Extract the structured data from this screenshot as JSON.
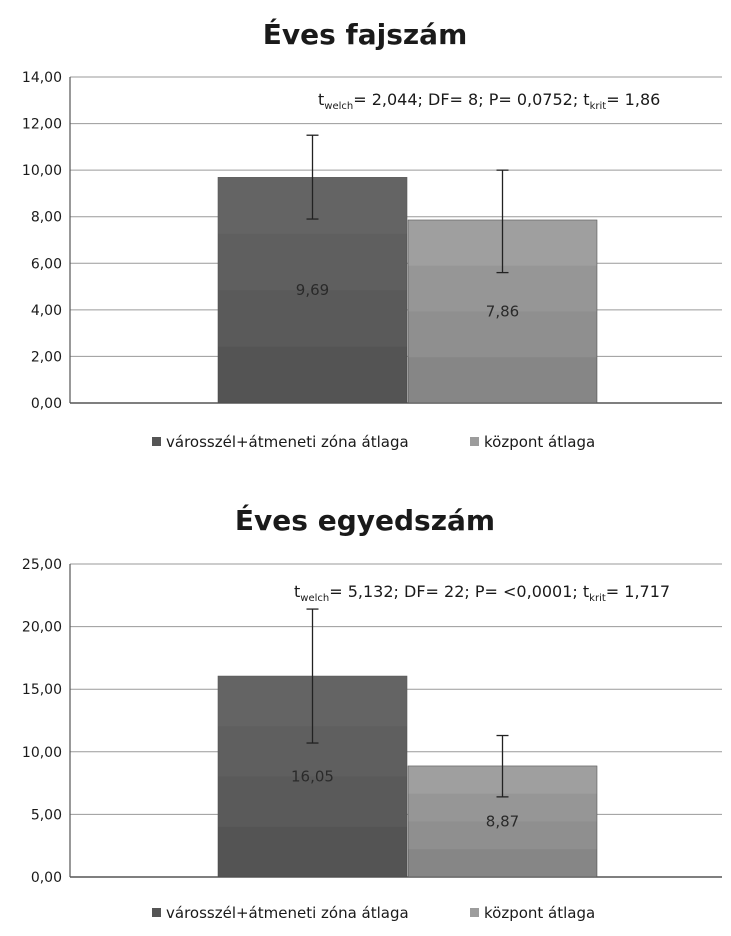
{
  "chart_data": [
    {
      "type": "bar",
      "title": "Éves fajszám",
      "categories": [
        "városszél+átmeneti zóna átlaga",
        "központ átlaga"
      ],
      "values": [
        9.69,
        7.86
      ],
      "value_labels": [
        "9,69",
        "7,86"
      ],
      "error_low": [
        7.9,
        5.6
      ],
      "error_high": [
        11.5,
        10.0
      ],
      "ylim": [
        0,
        14
      ],
      "y_ticks": [
        "0,00",
        "2,00",
        "4,00",
        "6,00",
        "8,00",
        "10,00",
        "12,00",
        "14,00"
      ],
      "stat": {
        "t_prefix": "t",
        "t_sub": "welch",
        "t_value": "= 2,044; ",
        "df": "DF= 8; ",
        "p": "P= 0,0752; ",
        "tk_prefix": "t",
        "tk_sub": "krit",
        "tk_value": "= 1,86"
      },
      "legend": [
        "városszél+átmeneti zóna átlaga",
        "központ átlaga"
      ],
      "legend_position": "bottom",
      "grid": true,
      "colors": [
        "#6a6a6a",
        "#a8a8a8"
      ]
    },
    {
      "type": "bar",
      "title": "Éves egyedszám",
      "categories": [
        "városszél+átmeneti zóna átlaga",
        "központ átlaga"
      ],
      "values": [
        16.05,
        8.87
      ],
      "value_labels": [
        "16,05",
        "8,87"
      ],
      "error_low": [
        10.7,
        6.4
      ],
      "error_high": [
        21.4,
        11.3
      ],
      "ylim": [
        0,
        25
      ],
      "y_ticks": [
        "0,00",
        "5,00",
        "10,00",
        "15,00",
        "20,00",
        "25,00"
      ],
      "stat": {
        "t_prefix": "t",
        "t_sub": "welch",
        "t_value": "= 5,132; ",
        "df": "DF= 22; ",
        "p": "P= <0,0001; ",
        "tk_prefix": "t",
        "tk_sub": "krit",
        "tk_value": "= 1,717"
      },
      "legend": [
        "városszél+átmeneti zóna átlaga",
        "központ átlaga"
      ],
      "legend_position": "bottom",
      "grid": true,
      "colors": [
        "#6a6a6a",
        "#a8a8a8"
      ]
    }
  ]
}
